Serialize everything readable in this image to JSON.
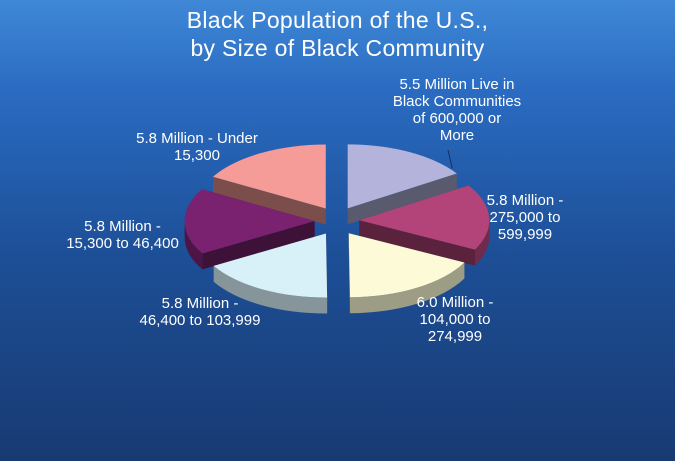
{
  "chart_data": {
    "type": "pie",
    "title": [
      "Black Population of the U.S.,",
      "by Size of Black Community"
    ],
    "slices": [
      {
        "label": [
          "5.5 Million Live in",
          "Black Communities",
          "of 600,000 or",
          "More"
        ],
        "value": 5.5,
        "color": "#b3b3dc"
      },
      {
        "label": [
          "5.8 Million -",
          "275,000 to",
          "599,999"
        ],
        "value": 5.8,
        "color": "#b3447a"
      },
      {
        "label": [
          "6.0 Million -",
          "104,000 to",
          "274,999"
        ],
        "value": 6.0,
        "color": "#fdfbd7"
      },
      {
        "label": [
          "5.8 Million -",
          "46,400 to 103,999"
        ],
        "value": 5.8,
        "color": "#d8f0f7"
      },
      {
        "label": [
          "5.8 Million -",
          "15,300 to 46,400"
        ],
        "value": 5.8,
        "color": "#7a2270"
      },
      {
        "label": [
          "5.8 Million - Under",
          "15,300"
        ],
        "value": 5.8,
        "color": "#f59b98"
      }
    ]
  }
}
